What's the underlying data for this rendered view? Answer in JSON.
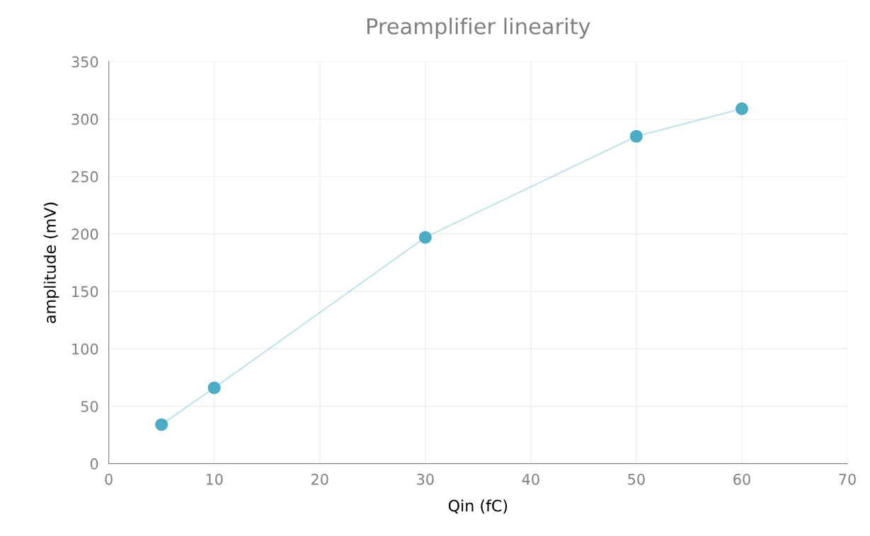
{
  "chart_data": {
    "type": "line",
    "title": "Preamplifier linearity",
    "xlabel": "Qin (fC)",
    "ylabel": "amplitude (mV)",
    "x": [
      5,
      10,
      30,
      50,
      60
    ],
    "series": [
      {
        "color": "#4bacc6",
        "values": [
          34,
          66,
          197,
          285,
          309
        ]
      }
    ],
    "xlim": [
      0,
      70
    ],
    "xticks": [
      0,
      10,
      20,
      30,
      40,
      50,
      60,
      70
    ],
    "ylim": [
      0,
      350
    ],
    "yticks": [
      0,
      50,
      100,
      150,
      200,
      250,
      300,
      350
    ],
    "grid": true,
    "marker": "circle",
    "line_style": "solid"
  }
}
